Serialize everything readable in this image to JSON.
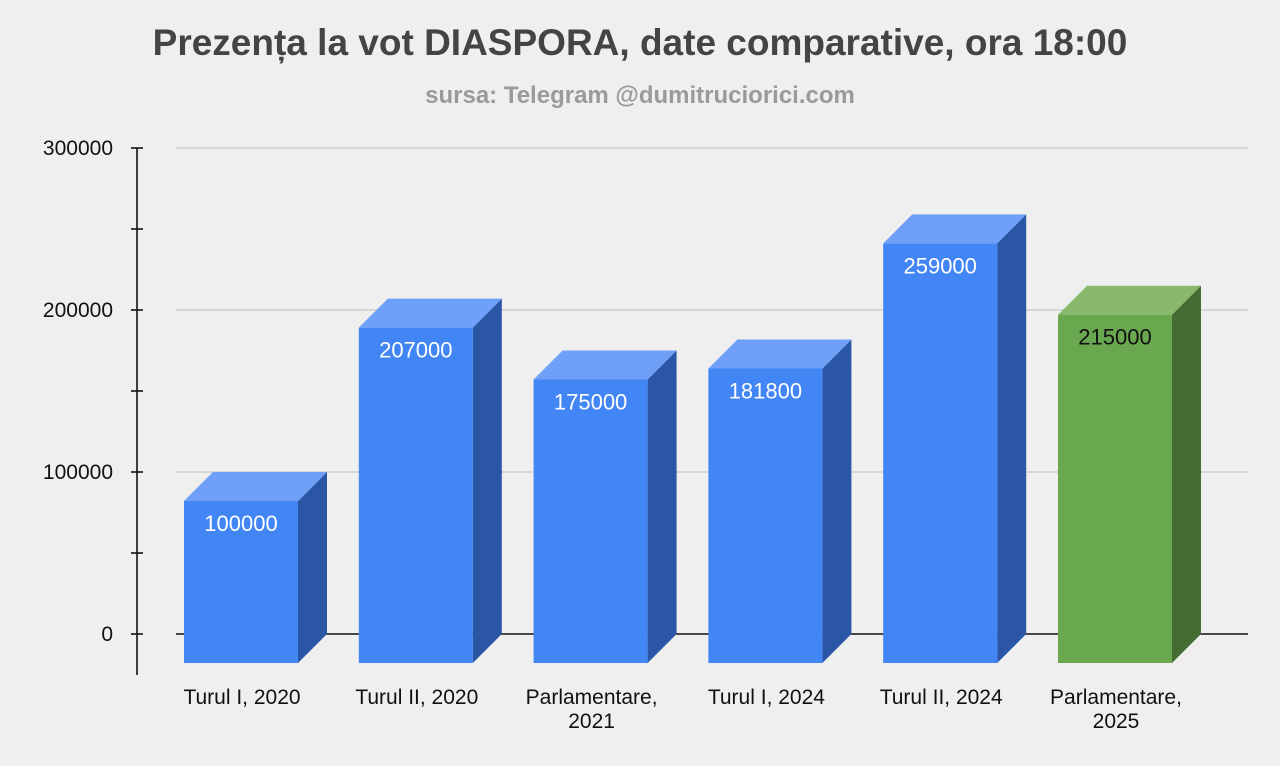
{
  "chart_data": {
    "type": "bar",
    "title": "Prezența la vot DIASPORA, date comparative, ora 18:00",
    "subtitle": "sursa: Telegram @dumitruciorici.com",
    "categories": [
      [
        "Turul I, 2020"
      ],
      [
        "Turul II, 2020"
      ],
      [
        "Parlamentare,",
        "2021"
      ],
      [
        "Turul I, 2024"
      ],
      [
        "Turul II, 2024"
      ],
      [
        "Parlamentare,",
        "2025"
      ]
    ],
    "values": [
      100000,
      207000,
      175000,
      181800,
      259000,
      215000
    ],
    "data_labels": [
      "100000",
      "207000",
      "175000",
      "181800",
      "259000",
      "215000"
    ],
    "y_ticks": [
      "0",
      "100000",
      "200000",
      "300000"
    ],
    "ylim": [
      0,
      300000
    ],
    "grid": true,
    "legend": "none",
    "colors": {
      "bar_front": [
        "#4285f4",
        "#4285f4",
        "#4285f4",
        "#4285f4",
        "#4285f4",
        "#6aa84f"
      ],
      "bar_top": [
        "#6fa0f7",
        "#6fa0f7",
        "#6fa0f7",
        "#6fa0f7",
        "#6fa0f7",
        "#89b86f"
      ],
      "bar_side": [
        "#2b55a5",
        "#2b55a5",
        "#2b55a5",
        "#2b55a5",
        "#2b55a5",
        "#456d32"
      ],
      "label_text": [
        "#ffffff",
        "#ffffff",
        "#ffffff",
        "#ffffff",
        "#ffffff",
        "#111111"
      ],
      "grid": "#c6c6c6",
      "axis": "#111111"
    }
  }
}
